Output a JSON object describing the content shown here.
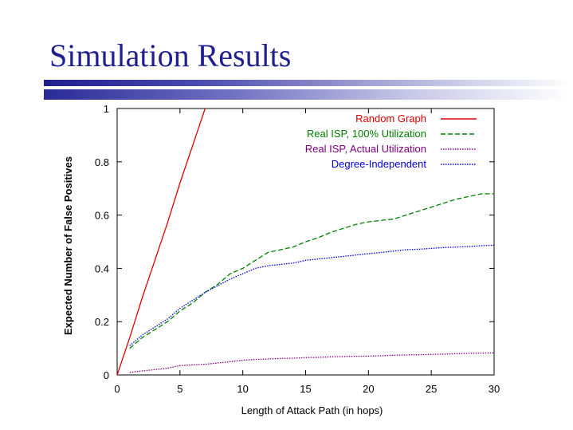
{
  "slide": {
    "title": "Simulation Results"
  },
  "chart_data": {
    "type": "line",
    "xlabel": "Length of Attack Path (in hops)",
    "ylabel": "Expected Number of False Positives",
    "xlim": [
      0,
      30
    ],
    "ylim": [
      0,
      1
    ],
    "xticks": [
      0,
      5,
      10,
      15,
      20,
      25,
      30
    ],
    "yticks": [
      0,
      0.2,
      0.4,
      0.6,
      0.8,
      1
    ],
    "xtick_labels": [
      "0",
      "5",
      "10",
      "15",
      "20",
      "25",
      "30"
    ],
    "ytick_labels": [
      "0",
      "0.2",
      "0.4",
      "0.6",
      "0.8",
      "1"
    ],
    "grid": false,
    "legend_position": "top-right",
    "series": [
      {
        "name": "Random Graph",
        "color": "#e00000",
        "dash": "solid",
        "x": [
          0,
          1,
          2,
          3,
          4,
          5,
          6,
          7
        ],
        "y": [
          0,
          0.14,
          0.29,
          0.43,
          0.57,
          0.72,
          0.86,
          1.0
        ]
      },
      {
        "name": "Real ISP, 100% Utilization",
        "color": "#008000",
        "dash": "dashed",
        "x": [
          1,
          2,
          3,
          4,
          5,
          6,
          7,
          8,
          9,
          10,
          11,
          12,
          13,
          14,
          15,
          16,
          17,
          18,
          19,
          20,
          21,
          22,
          23,
          24,
          25,
          26,
          27,
          28,
          29,
          30
        ],
        "y": [
          0.1,
          0.14,
          0.17,
          0.2,
          0.24,
          0.27,
          0.31,
          0.34,
          0.38,
          0.4,
          0.43,
          0.46,
          0.47,
          0.48,
          0.5,
          0.515,
          0.535,
          0.55,
          0.565,
          0.575,
          0.58,
          0.585,
          0.6,
          0.615,
          0.63,
          0.645,
          0.66,
          0.67,
          0.68,
          0.68
        ]
      },
      {
        "name": "Real ISP, Actual Utilization",
        "color": "#800080",
        "dash": "dotted",
        "x": [
          1,
          2,
          3,
          4,
          5,
          6,
          7,
          8,
          9,
          10,
          11,
          12,
          13,
          14,
          15,
          16,
          17,
          18,
          19,
          20,
          21,
          22,
          23,
          24,
          25,
          26,
          27,
          28,
          29,
          30
        ],
        "y": [
          0.01,
          0.015,
          0.02,
          0.025,
          0.035,
          0.038,
          0.04,
          0.045,
          0.05,
          0.055,
          0.058,
          0.06,
          0.062,
          0.063,
          0.065,
          0.066,
          0.068,
          0.069,
          0.07,
          0.071,
          0.072,
          0.074,
          0.075,
          0.076,
          0.077,
          0.078,
          0.08,
          0.081,
          0.082,
          0.083
        ]
      },
      {
        "name": "Degree-Independent",
        "color": "#0000e0",
        "dash": "dotted",
        "x": [
          1,
          2,
          3,
          4,
          5,
          6,
          7,
          8,
          9,
          10,
          11,
          12,
          13,
          14,
          15,
          16,
          17,
          18,
          19,
          20,
          21,
          22,
          23,
          24,
          25,
          26,
          27,
          28,
          29,
          30
        ],
        "y": [
          0.11,
          0.15,
          0.18,
          0.21,
          0.25,
          0.28,
          0.31,
          0.335,
          0.36,
          0.38,
          0.4,
          0.41,
          0.415,
          0.42,
          0.43,
          0.435,
          0.44,
          0.445,
          0.45,
          0.455,
          0.46,
          0.465,
          0.47,
          0.472,
          0.475,
          0.478,
          0.48,
          0.482,
          0.485,
          0.487
        ]
      }
    ]
  }
}
